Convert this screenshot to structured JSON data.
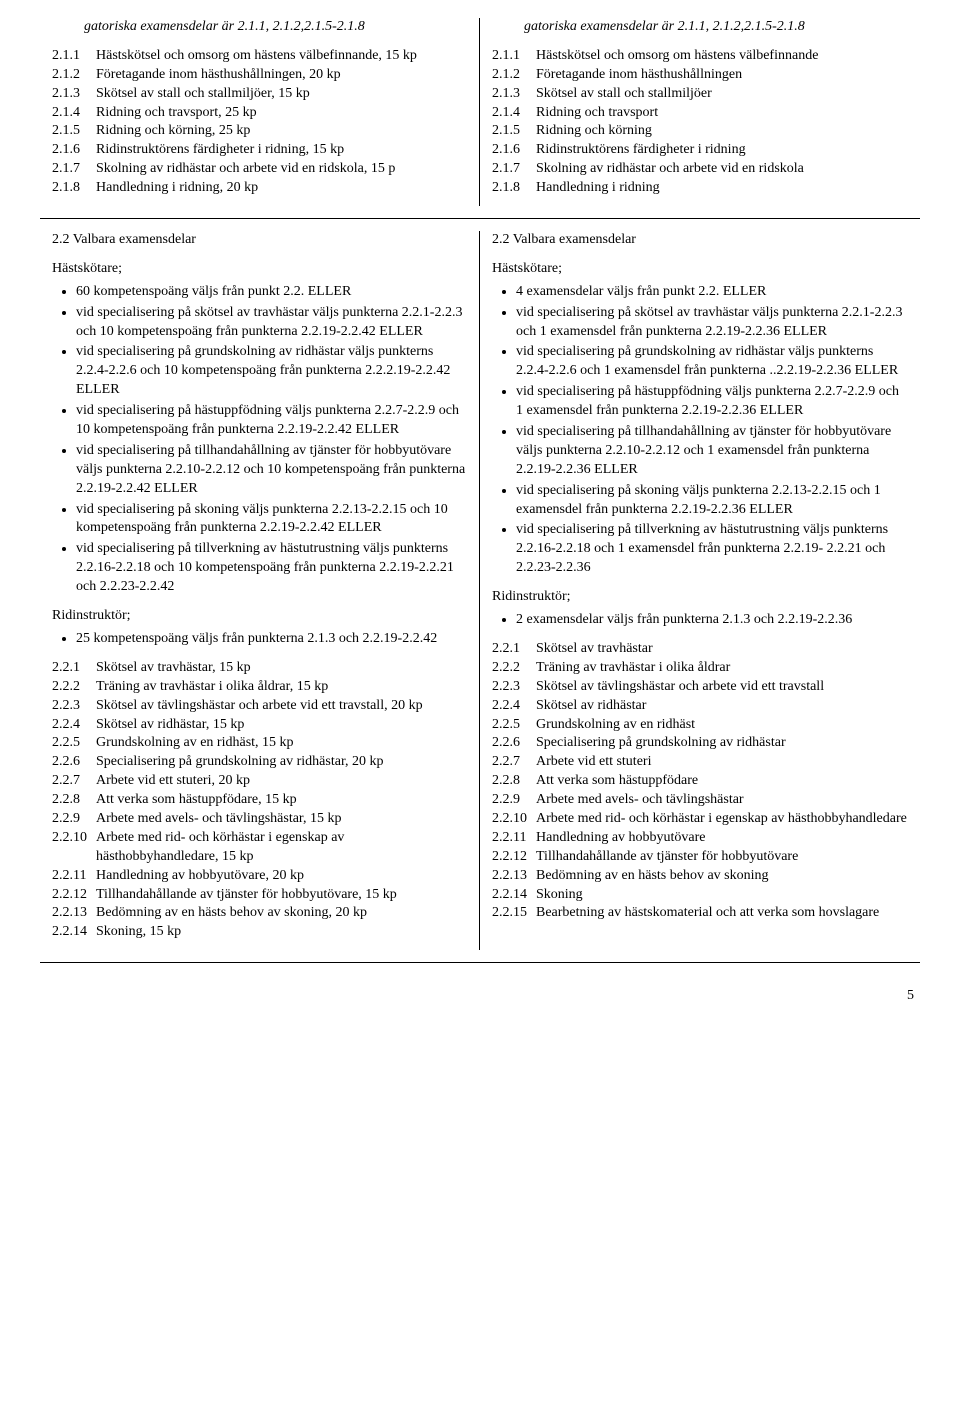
{
  "rowA": {
    "left": {
      "intro": "gatoriska examensdelar är 2.1.1, 2.1.2,2.1.5-2.1.8",
      "items": [
        {
          "n": "2.1.1",
          "t": "Hästskötsel och omsorg om hästens välbefinnande, 15 kp"
        },
        {
          "n": "2.1.2",
          "t": "Företagande inom hästhushållningen, 20 kp"
        },
        {
          "n": "2.1.3",
          "t": "Skötsel av stall och stallmiljöer, 15 kp"
        },
        {
          "n": "2.1.4",
          "t": "Ridning och travsport, 25 kp"
        },
        {
          "n": "2.1.5",
          "t": "Ridning och körning, 25 kp"
        },
        {
          "n": "2.1.6",
          "t": "Ridinstruktörens färdigheter i ridning, 15 kp"
        },
        {
          "n": "2.1.7",
          "t": "Skolning av ridhästar och arbete vid en ridskola, 15 p"
        },
        {
          "n": "2.1.8",
          "t": "Handledning i ridning, 20 kp"
        }
      ]
    },
    "right": {
      "intro": "gatoriska examensdelar är 2.1.1, 2.1.2,2.1.5-2.1.8",
      "items": [
        {
          "n": "2.1.1",
          "t": "Hästskötsel och omsorg om hästens välbefinnande"
        },
        {
          "n": "2.1.2",
          "t": "Företagande inom hästhushållningen"
        },
        {
          "n": "2.1.3",
          "t": "Skötsel av stall och stallmiljöer"
        },
        {
          "n": "2.1.4",
          "t": "Ridning och travsport"
        },
        {
          "n": "2.1.5",
          "t": "Ridning och körning"
        },
        {
          "n": "2.1.6",
          "t": "Ridinstruktörens färdigheter i ridning"
        },
        {
          "n": "2.1.7",
          "t": "Skolning av ridhästar och arbete vid en ridskola"
        },
        {
          "n": "2.1.8",
          "t": "Handledning i ridning"
        }
      ]
    }
  },
  "rowB": {
    "left": {
      "heading": "2.2 Valbara examensdelar",
      "hast_label": "Hästskötare;",
      "hast_bullets": [
        "60 kompetenspoäng väljs från punkt 2.2. ELLER",
        "vid specialisering på skötsel av travhästar väljs punkterna 2.2.1-2.2.3 och 10 kompetenspoäng från punkterna 2.2.19-2.2.42 ELLER",
        "vid specialisering på grundskolning av ridhästar väljs punkterns 2.2.4-2.2.6 och 10 kompetenspoäng från punkterna 2.2.2.19-2.2.42  ELLER",
        "vid specialisering på hästuppfödning väljs punkterna 2.2.7-2.2.9 och 10 kompetenspoäng från punkterna 2.2.19-2.2.42 ELLER",
        "vid specialisering på tillhandahållning av tjänster för hobbyutövare väljs punkterna 2.2.10-2.2.12 och 10 kompetenspoäng från punkterna 2.2.19-2.2.42 ELLER",
        "vid specialisering på skoning väljs punkterna 2.2.13-2.2.15 och 10 kompetenspoäng från punkterna 2.2.19-2.2.42  ELLER",
        "vid specialisering på tillverkning av hästutrustning väljs punkterns 2.2.16-2.2.18 och 10 kompetenspoäng från punkterna 2.2.19-2.2.21 och 2.2.23-2.2.42"
      ],
      "rid_label": "Ridinstruktör;",
      "rid_bullets": [
        "25 kompetenspoäng väljs från punkterna 2.1.3 och 2.2.19-2.2.42"
      ],
      "items": [
        {
          "n": "2.2.1",
          "t": "Skötsel av travhästar, 15 kp"
        },
        {
          "n": "2.2.2",
          "t": "Träning av travhästar i olika åldrar, 15 kp"
        },
        {
          "n": "2.2.3",
          "t": "Skötsel av tävlingshästar och arbete vid ett travstall, 20 kp"
        },
        {
          "n": "2.2.4",
          "t": "Skötsel av ridhästar, 15 kp"
        },
        {
          "n": "2.2.5",
          "t": "Grundskolning av en ridhäst, 15 kp"
        },
        {
          "n": "2.2.6",
          "t": "Specialisering på grundskolning av ridhästar, 20 kp"
        },
        {
          "n": "2.2.7",
          "t": "Arbete vid ett stuteri, 20 kp"
        },
        {
          "n": "2.2.8",
          "t": "Att verka som hästuppfödare, 15 kp"
        },
        {
          "n": "2.2.9",
          "t": "Arbete med avels- och tävlingshästar, 15 kp"
        },
        {
          "n": "2.2.10",
          "t": "Arbete med rid- och körhästar i egenskap av hästhobbyhandledare, 15 kp"
        },
        {
          "n": "2.2.11",
          "t": "Handledning av hobbyutövare, 20 kp"
        },
        {
          "n": "2.2.12",
          "t": "Tillhandahållande av tjänster för hobbyutövare, 15 kp"
        },
        {
          "n": "2.2.13",
          "t": "Bedömning av en hästs behov av skoning, 20 kp"
        },
        {
          "n": "2.2.14",
          "t": "Skoning, 15 kp"
        }
      ]
    },
    "right": {
      "heading": "2.2 Valbara examensdelar",
      "hast_label": "Hästskötare;",
      "hast_bullets": [
        "4 examensdelar väljs från punkt 2.2. ELLER",
        "vid specialisering på skötsel av travhästar väljs punkterna 2.2.1-2.2.3 och 1 examensdel från punkterna 2.2.19-2.2.36 ELLER",
        "vid specialisering på grundskolning av ridhästar väljs punkterns 2.2.4-2.2.6 och 1 examensdel från punkterna ..2.2.19-2.2.36  ELLER",
        "vid specialisering på hästuppfödning väljs punkterna 2.2.7-2.2.9 och 1 examensdel från punkterna 2.2.19-2.2.36 ELLER",
        "vid specialisering på tillhandahållning av tjänster för hobbyutövare väljs punkterna 2.2.10-2.2.12 och 1 examensdel från punkterna 2.2.19-2.2.36 ELLER",
        "vid specialisering på skoning väljs punkterna 2.2.13-2.2.15 och 1 examensdel från punkterna 2.2.19-2.2.36  ELLER",
        "vid specialisering på tillverkning av hästutrustning väljs punkterns 2.2.16-2.2.18 och 1 examensdel från punkterna 2.2.19- 2.2.21 och 2.2.23-2.2.36"
      ],
      "rid_label": "Ridinstruktör;",
      "rid_bullets": [
        "2 examensdelar väljs från punkterna 2.1.3 och 2.2.19-2.2.36"
      ],
      "items": [
        {
          "n": "2.2.1",
          "t": "Skötsel av travhästar"
        },
        {
          "n": "2.2.2",
          "t": "Träning av travhästar i olika åldrar"
        },
        {
          "n": "2.2.3",
          "t": "Skötsel av tävlingshästar och arbete vid ett travstall"
        },
        {
          "n": "2.2.4",
          "t": "Skötsel av ridhästar"
        },
        {
          "n": "2.2.5",
          "t": "Grundskolning av en ridhäst"
        },
        {
          "n": "2.2.6",
          "t": "Specialisering på grundskolning av ridhästar"
        },
        {
          "n": "2.2.7",
          "t": "Arbete vid ett stuteri"
        },
        {
          "n": "2.2.8",
          "t": "Att verka som hästuppfödare"
        },
        {
          "n": "2.2.9",
          "t": "Arbete med avels- och tävlingshästar"
        },
        {
          "n": "2.2.10",
          "t": "Arbete med rid- och körhästar i egenskap av hästhobbyhandledare"
        },
        {
          "n": "2.2.11",
          "t": "Handledning av hobbyutövare"
        },
        {
          "n": "2.2.12",
          "t": "Tillhandahållande av tjänster för hobbyutövare"
        },
        {
          "n": "2.2.13",
          "t": "Bedömning av en hästs behov av skoning"
        },
        {
          "n": "2.2.14",
          "t": "Skoning"
        },
        {
          "n": "2.2.15",
          "t": "Bearbetning av hästskomaterial och att verka som hovslagare"
        }
      ]
    }
  },
  "page_number": "5"
}
